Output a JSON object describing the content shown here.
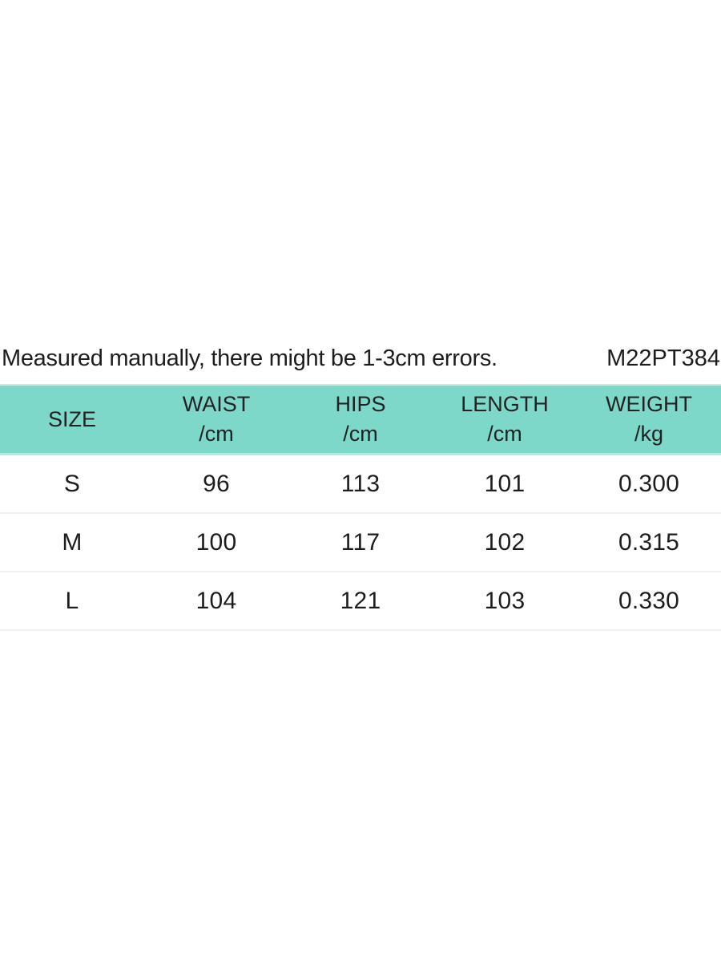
{
  "note": {
    "text": "Measured manually, there might be 1-3cm errors.",
    "product_code": "M22PT384"
  },
  "table": {
    "columns": [
      {
        "label": "SIZE",
        "unit": ""
      },
      {
        "label": "WAIST",
        "unit": "/cm"
      },
      {
        "label": "HIPS",
        "unit": "/cm"
      },
      {
        "label": "LENGTH",
        "unit": "/cm"
      },
      {
        "label": "WEIGHT",
        "unit": "/kg"
      }
    ],
    "rows": [
      {
        "size": "S",
        "waist": "96",
        "hips": "113",
        "length": "101",
        "weight": "0.300"
      },
      {
        "size": "M",
        "waist": "100",
        "hips": "117",
        "length": "102",
        "weight": "0.315"
      },
      {
        "size": "L",
        "waist": "104",
        "hips": "121",
        "length": "103",
        "weight": "0.330"
      }
    ],
    "colors": {
      "header_bg": "#7ed8c9",
      "header_edge": "#b2e8df",
      "row_divider": "#f1f1f1",
      "text": "#1d1d1d"
    }
  }
}
